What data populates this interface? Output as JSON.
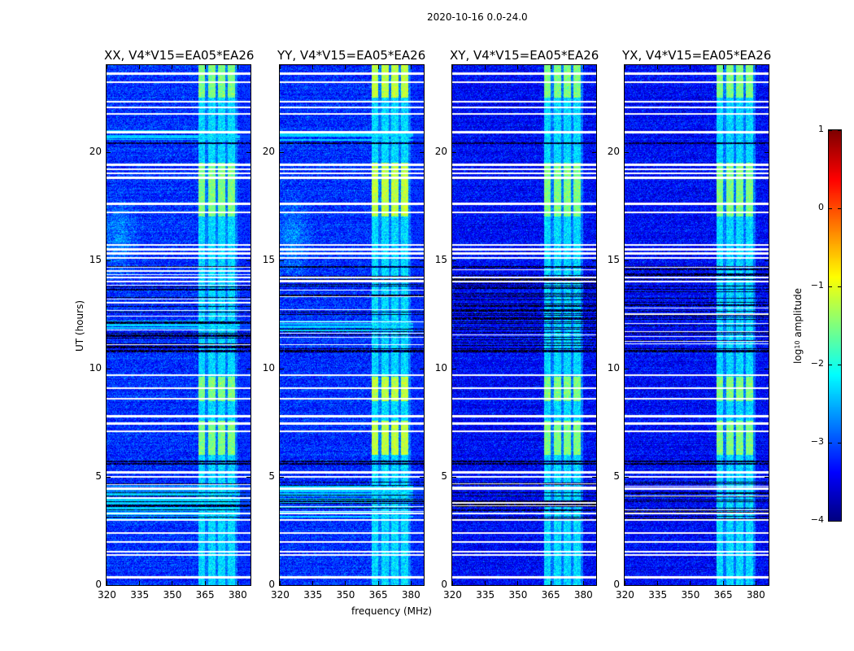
{
  "chart_data": {
    "type": "heatmap",
    "title": "2020-10-16 0.0-24.0",
    "xlabel": "frequency (MHz)",
    "ylabel": "UT (hours)",
    "xlim": [
      320,
      386
    ],
    "ylim": [
      0,
      24
    ],
    "xticks": [
      320,
      335,
      350,
      365,
      380
    ],
    "yticks": [
      0,
      5,
      10,
      15,
      20
    ],
    "panels": [
      {
        "title": "XX, V4*V15=EA05*EA26",
        "pol": "XX"
      },
      {
        "title": "YY, V4*V15=EA05*EA26",
        "pol": "YY"
      },
      {
        "title": "XY, V4*V15=EA05*EA26",
        "pol": "XY"
      },
      {
        "title": "YX, V4*V15=EA05*EA26",
        "pol": "YX"
      }
    ],
    "colorbar": {
      "label": "log10 amplitude",
      "label_main": "log",
      "label_sub": "10",
      "label_rest": " amplitude",
      "colormap": "jet",
      "range": [
        -4,
        1
      ],
      "ticks": [
        1,
        0,
        -1,
        -2,
        -3,
        -4
      ],
      "tick_labels": [
        "1",
        "0",
        "−1",
        "−2",
        "−3",
        "−4"
      ]
    },
    "features": {
      "background_log_amp": -3.2,
      "rfi_band_mhz": [
        362,
        380
      ],
      "rfi_strong_ut": [
        [
          17,
          19.5
        ],
        [
          22.5,
          24
        ],
        [
          6,
          7.6
        ],
        [
          8.5,
          9.6
        ]
      ],
      "flagged_ut": [
        23.6,
        23.2,
        22.3,
        22.05,
        21.75,
        20.9,
        19.4,
        19.2,
        19.0,
        18.8,
        17.6,
        17.2,
        15.7,
        15.5,
        15.3,
        15.1,
        14.2,
        14.0,
        9.7,
        9.1,
        8.6,
        7.8,
        7.45,
        7.1,
        5.2,
        5.0,
        4.45,
        3.3,
        3.0,
        2.4,
        2.0,
        1.55,
        1.4,
        0.35
      ],
      "dark_ut": [
        20.4,
        14.7,
        10.8,
        5.7,
        5.6
      ],
      "noisy_ut_ranges": [
        [
          10.8,
          14.7
        ],
        [
          2.9,
          4.8
        ]
      ]
    }
  }
}
